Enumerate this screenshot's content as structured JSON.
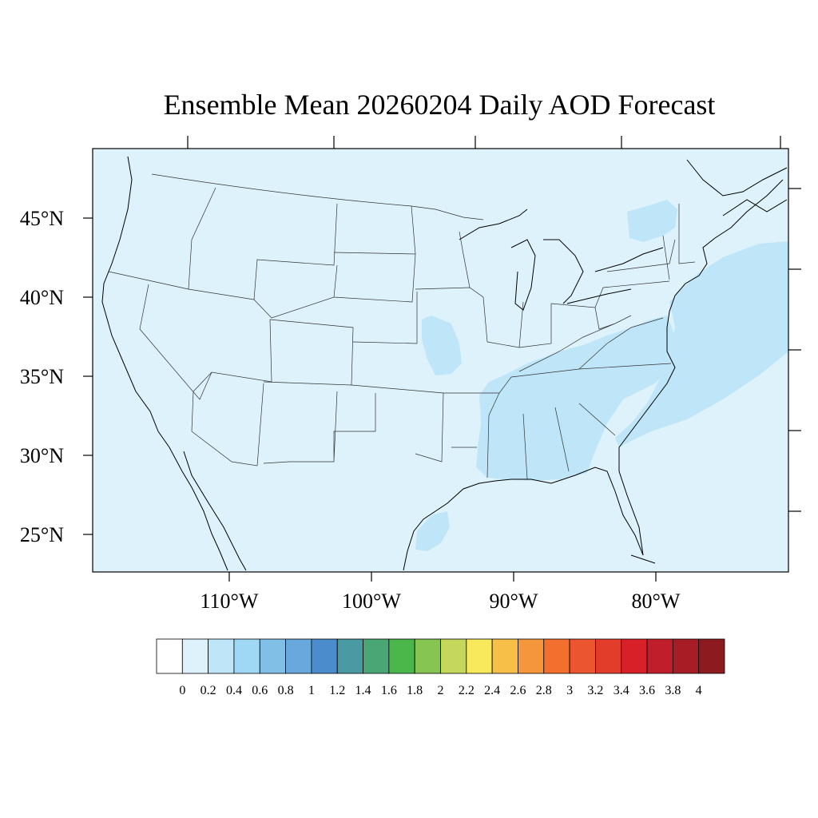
{
  "title": "Ensemble Mean 20260204 Daily AOD Forecast",
  "map": {
    "region": "Contiguous United States",
    "lat_labels": [
      "45°N",
      "40°N",
      "35°N",
      "30°N",
      "25°N"
    ],
    "lon_labels": [
      "110°W",
      "100°W",
      "90°W",
      "80°W"
    ],
    "background_fill": "#def2fb",
    "enhanced_fill": "#bfe6f8"
  },
  "colorbar": {
    "labels": [
      "0",
      "0.2",
      "0.4",
      "0.6",
      "0.8",
      "1",
      "1.2",
      "1.4",
      "1.6",
      "1.8",
      "2",
      "2.2",
      "2.4",
      "2.6",
      "2.8",
      "3",
      "3.2",
      "3.4",
      "3.6",
      "3.8",
      "4"
    ],
    "colors": [
      "#ffffff",
      "#def2fb",
      "#bfe6f8",
      "#9fd8f4",
      "#82bfe6",
      "#68a8dc",
      "#4a8ccc",
      "#4a9aa4",
      "#4aa674",
      "#4bb74a",
      "#87c553",
      "#c5d85b",
      "#f8e85c",
      "#f7bf47",
      "#f5963d",
      "#f26f2d",
      "#eb5530",
      "#e23c2a",
      "#d82028",
      "#c01e2a",
      "#a71c25",
      "#8d1a1f"
    ]
  }
}
